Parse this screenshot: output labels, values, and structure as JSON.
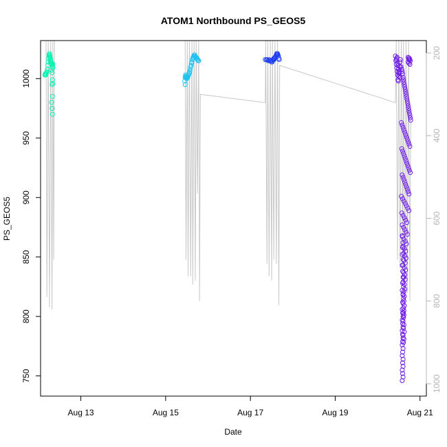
{
  "chart_data": {
    "type": "scatter",
    "title": "ATOM1 Northbound PS_GEOS5",
    "xlabel": "Date",
    "ylabel": "PS_GEOS5",
    "x_unit": "days in August",
    "xlim": [
      12.05,
      21.15
    ],
    "ylim": [
      733,
      1032
    ],
    "x_ticks": [
      13,
      15,
      17,
      19,
      21
    ],
    "x_tick_labels": [
      "Aug 13",
      "Aug 15",
      "Aug 17",
      "Aug 19",
      "Aug 21"
    ],
    "y_ticks": [
      750,
      800,
      850,
      900,
      950,
      1000
    ],
    "y_tick_labels": [
      "750",
      "800",
      "850",
      "900",
      "950",
      "1000"
    ],
    "right_axis": {
      "ylim": [
        1030,
        170
      ],
      "ticks": [
        200,
        400,
        600,
        800,
        1000
      ],
      "tick_labels": [
        "200",
        "400",
        "600",
        "800",
        "1000"
      ],
      "color": "#b5b5b5"
    },
    "grid": false,
    "legend": "none",
    "line_color": "#c8c8c8",
    "altitude_trace": [
      [
        12.18,
        170
      ],
      [
        12.2,
        790
      ],
      [
        12.23,
        170
      ],
      [
        12.26,
        815
      ],
      [
        12.29,
        170
      ],
      [
        12.32,
        820
      ],
      [
        12.34,
        170
      ],
      [
        12.36,
        700
      ],
      [
        12.38,
        170
      ],
      [
        15.46,
        170
      ],
      [
        15.48,
        700
      ],
      [
        15.51,
        170
      ],
      [
        15.53,
        740
      ],
      [
        15.56,
        170
      ],
      [
        15.59,
        740
      ],
      [
        15.62,
        170
      ],
      [
        15.64,
        760
      ],
      [
        15.67,
        170
      ],
      [
        15.7,
        750
      ],
      [
        15.72,
        170
      ],
      [
        15.75,
        540
      ],
      [
        15.78,
        170
      ],
      [
        15.8,
        800
      ],
      [
        15.82,
        300
      ],
      [
        17.35,
        320
      ],
      [
        17.36,
        170
      ],
      [
        17.39,
        710
      ],
      [
        17.41,
        170
      ],
      [
        17.44,
        740
      ],
      [
        17.47,
        170
      ],
      [
        17.5,
        750
      ],
      [
        17.52,
        170
      ],
      [
        17.55,
        700
      ],
      [
        17.58,
        170
      ],
      [
        17.61,
        710
      ],
      [
        17.64,
        170
      ],
      [
        17.67,
        810
      ],
      [
        17.69,
        230
      ],
      [
        20.42,
        320
      ],
      [
        20.44,
        170
      ],
      [
        20.47,
        700
      ],
      [
        20.5,
        170
      ],
      [
        20.53,
        720
      ],
      [
        20.56,
        170
      ],
      [
        20.59,
        740
      ],
      [
        20.61,
        170
      ],
      [
        20.64,
        800
      ],
      [
        20.67,
        170
      ],
      [
        20.7,
        780
      ],
      [
        20.73,
        170
      ],
      [
        20.76,
        800
      ],
      [
        20.78,
        360
      ]
    ],
    "series": [
      {
        "color": "#00f5b0",
        "x": [
          12.15,
          12.16,
          12.17,
          12.18,
          12.19,
          12.2,
          12.21,
          12.22,
          12.23,
          12.24,
          12.25,
          12.25,
          12.26,
          12.26,
          12.27,
          12.27,
          12.28,
          12.28,
          12.29,
          12.29,
          12.3,
          12.3,
          12.31,
          12.31,
          12.32,
          12.32,
          12.33,
          12.33,
          12.34,
          12.34,
          12.31,
          12.32,
          12.33,
          12.34,
          12.32,
          12.33,
          12.31,
          12.32,
          12.33
        ],
        "y": [
          1003,
          1004,
          1003,
          1004,
          1005,
          1006,
          1008,
          1011,
          1014,
          1017,
          1019,
          1020,
          1021,
          1020,
          1019,
          1018,
          1017,
          1016,
          1015,
          1014,
          1014,
          1013,
          1012,
          1012,
          1013,
          1011,
          1010,
          1010,
          1009,
          1012,
          1007,
          1005,
          999,
          996,
          995,
          985,
          980,
          975,
          970
        ]
      },
      {
        "color": "#1ec2f0",
        "x": [
          15.45,
          15.46,
          15.47,
          15.48,
          15.49,
          15.5,
          15.51,
          15.52,
          15.53,
          15.54,
          15.55,
          15.56,
          15.57,
          15.58,
          15.59,
          15.6,
          15.61,
          15.62,
          15.63,
          15.64,
          15.65,
          15.66,
          15.67,
          15.68,
          15.69,
          15.7,
          15.71,
          15.72,
          15.73,
          15.74,
          15.75,
          15.76,
          15.77,
          15.78,
          15.46,
          15.47,
          15.49
        ],
        "y": [
          998,
          1001,
          1002,
          1001,
          1000,
          1000,
          1001,
          1001,
          1002,
          1003,
          1004,
          1005,
          1006,
          1008,
          1010,
          1011,
          1013,
          1014,
          1016,
          1017,
          1018,
          1019,
          1019,
          1020,
          1019,
          1019,
          1018,
          1018,
          1017,
          1017,
          1016,
          1016,
          1015,
          1015,
          995,
          1003,
          1002
        ]
      },
      {
        "color": "#1f3ef0",
        "x": [
          17.35,
          17.38,
          17.4,
          17.42,
          17.44,
          17.46,
          17.48,
          17.5,
          17.51,
          17.52,
          17.53,
          17.54,
          17.55,
          17.56,
          17.57,
          17.58,
          17.6,
          17.61,
          17.62,
          17.63,
          17.64,
          17.65,
          17.66,
          17.67,
          17.68
        ],
        "y": [
          1016,
          1016,
          1016,
          1015,
          1016,
          1015,
          1015,
          1014,
          1014,
          1015,
          1016,
          1016,
          1017,
          1016,
          1017,
          1018,
          1019,
          1020,
          1021,
          1020,
          1021,
          1020,
          1019,
          1017,
          1016
        ]
      },
      {
        "color": "#6e1be6",
        "x": [
          20.42,
          20.43,
          20.44,
          20.45,
          20.46,
          20.47,
          20.48,
          20.49,
          20.5,
          20.51,
          20.52,
          20.53,
          20.54,
          20.45,
          20.47,
          20.49,
          20.51,
          20.53,
          20.48,
          20.5,
          20.46,
          20.44,
          20.72,
          20.73,
          20.74,
          20.75,
          20.76,
          20.77,
          20.72,
          20.74,
          20.76,
          20.55,
          20.57,
          20.58,
          20.59,
          20.6,
          20.61,
          20.62,
          20.63,
          20.64,
          20.65,
          20.66,
          20.67,
          20.68,
          20.69,
          20.7,
          20.71,
          20.72,
          20.73,
          20.74,
          20.75,
          20.76,
          20.77,
          20.78,
          20.56,
          20.58,
          20.6,
          20.62,
          20.64,
          20.66,
          20.68,
          20.7,
          20.72,
          20.74,
          20.76,
          20.57,
          20.59,
          20.61,
          20.63,
          20.65,
          20.67,
          20.69,
          20.71,
          20.73,
          20.75,
          20.77,
          20.58,
          20.6,
          20.62,
          20.64,
          20.66,
          20.68,
          20.7,
          20.72,
          20.74,
          20.56,
          20.59,
          20.62,
          20.65,
          20.68,
          20.71,
          20.74,
          20.57,
          20.6,
          20.63,
          20.66,
          20.69,
          20.58,
          20.61,
          20.64,
          20.67,
          20.7,
          20.59,
          20.62,
          20.65,
          20.68,
          20.6,
          20.63,
          20.66,
          20.61,
          20.64,
          20.67,
          20.62,
          20.65,
          20.6,
          20.63,
          20.66,
          20.61,
          20.64,
          20.62,
          20.65,
          20.6,
          20.63,
          20.61,
          20.64,
          20.62,
          20.6,
          20.63,
          20.61,
          20.62,
          20.6,
          20.63,
          20.61,
          20.62,
          20.61,
          20.62,
          20.61,
          20.6,
          20.62,
          20.61,
          20.63,
          20.6,
          20.62,
          20.61
        ],
        "y": [
          1019,
          1015,
          1012,
          1009,
          1006,
          1003,
          999,
          998,
          1002,
          1006,
          1010,
          1014,
          1016,
          1017,
          1013,
          1008,
          1004,
          1001,
          1011,
          1005,
          1018,
          1016,
          1018,
          1017,
          1016,
          1017,
          1016,
          1015,
          1014,
          1013,
          1012,
          1010,
          1008,
          1006,
          1004,
          1001,
          999,
          997,
          995,
          993,
          991,
          989,
          987,
          985,
          983,
          981,
          979,
          977,
          975,
          973,
          971,
          969,
          967,
          965,
          963,
          961,
          959,
          957,
          955,
          953,
          951,
          949,
          947,
          945,
          943,
          941,
          939,
          937,
          935,
          933,
          931,
          929,
          927,
          925,
          923,
          921,
          919,
          917,
          915,
          913,
          911,
          909,
          907,
          905,
          903,
          901,
          899,
          897,
          895,
          893,
          891,
          889,
          887,
          885,
          883,
          881,
          879,
          877,
          875,
          873,
          871,
          869,
          867,
          865,
          863,
          861,
          859,
          857,
          855,
          853,
          851,
          849,
          847,
          845,
          843,
          841,
          839,
          837,
          835,
          833,
          831,
          829,
          827,
          825,
          823,
          821,
          819,
          817,
          815,
          813,
          811,
          809,
          807,
          805,
          803,
          801,
          799,
          796,
          793,
          790,
          787,
          784,
          781,
          778
        ]
      },
      {
        "color": "#6e1be6",
        "x": [
          20.58,
          20.59,
          20.6,
          20.58,
          20.59,
          20.6,
          20.58,
          20.59,
          20.6,
          20.59,
          20.58,
          20.6,
          20.59,
          20.58,
          20.6,
          20.59,
          20.6,
          20.58,
          20.59,
          20.6,
          20.58,
          20.59,
          20.6,
          20.58,
          20.59,
          20.6,
          20.59,
          20.58,
          20.6,
          20.58,
          20.59,
          20.6,
          20.58
        ],
        "y": [
          806,
          803,
          800,
          797,
          794,
          791,
          788,
          785,
          782,
          779,
          776,
          773,
          770,
          767,
          764,
          761,
          758,
          755,
          752,
          749,
          746,
          812,
          818,
          822,
          828,
          833,
          838,
          843,
          848,
          852,
          858,
          862,
          868
        ]
      }
    ]
  }
}
